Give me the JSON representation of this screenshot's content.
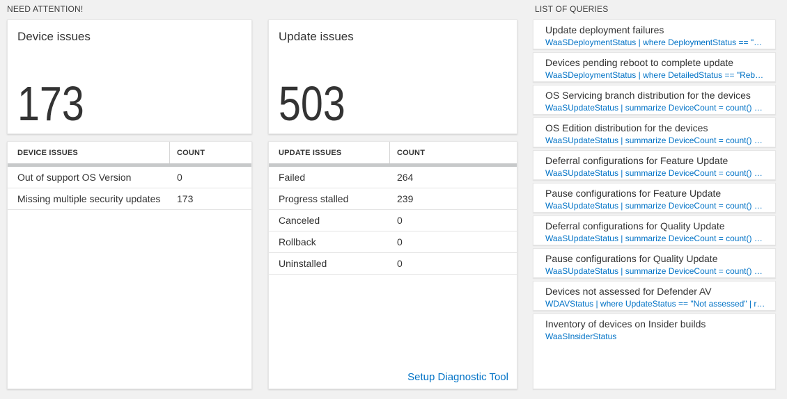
{
  "sections": {
    "need_attention": "NEED ATTENTION!",
    "list_of_queries": "LIST OF QUERIES"
  },
  "device_issues": {
    "title": "Device issues",
    "total": "173",
    "table": {
      "headers": [
        "DEVICE ISSUES",
        "COUNT"
      ],
      "rows": [
        [
          "Out of support OS Version",
          "0"
        ],
        [
          "Missing multiple security updates",
          "173"
        ]
      ]
    }
  },
  "update_issues": {
    "title": "Update issues",
    "total": "503",
    "table": {
      "headers": [
        "UPDATE ISSUES",
        "COUNT"
      ],
      "rows": [
        [
          "Failed",
          "264"
        ],
        [
          "Progress stalled",
          "239"
        ],
        [
          "Canceled",
          "0"
        ],
        [
          "Rollback",
          "0"
        ],
        [
          "Uninstalled",
          "0"
        ]
      ]
    },
    "footer_link": "Setup Diagnostic Tool"
  },
  "queries": [
    {
      "title": "Update deployment failures",
      "query": "WaaSDeploymentStatus | where DeploymentStatus == \"Failed\" |..."
    },
    {
      "title": "Devices pending reboot to complete update",
      "query": "WaaSDeploymentStatus | where DetailedStatus == \"Reboot pend..."
    },
    {
      "title": "OS Servicing branch distribution for the devices",
      "query": "WaaSUpdateStatus | summarize DeviceCount = count() by OSSer..."
    },
    {
      "title": "OS Edition distribution for the devices",
      "query": "WaaSUpdateStatus | summarize DeviceCount = count() by OSEdit..."
    },
    {
      "title": "Deferral configurations for Feature Update",
      "query": "WaaSUpdateStatus | summarize DeviceCount = count() by Featur..."
    },
    {
      "title": "Pause configurations for Feature Update",
      "query": "WaaSUpdateStatus | summarize DeviceCount = count() by Featur..."
    },
    {
      "title": "Deferral configurations for Quality Update",
      "query": "WaaSUpdateStatus | summarize DeviceCount = count() by Qualit..."
    },
    {
      "title": "Pause configurations for Quality Update",
      "query": "WaaSUpdateStatus | summarize DeviceCount = count() by Qualit..."
    },
    {
      "title": "Devices not assessed for Defender AV",
      "query": "WDAVStatus | where UpdateStatus == \"Not assessed\" | render ta..."
    },
    {
      "title": "Inventory of devices on Insider builds",
      "query": "WaaSInsiderStatus"
    }
  ],
  "colors": {
    "link_blue": "#0072c6",
    "page_background": "#f1f1f1",
    "text_dark": "#333333",
    "header_band_gray": "#c7c9ca"
  }
}
